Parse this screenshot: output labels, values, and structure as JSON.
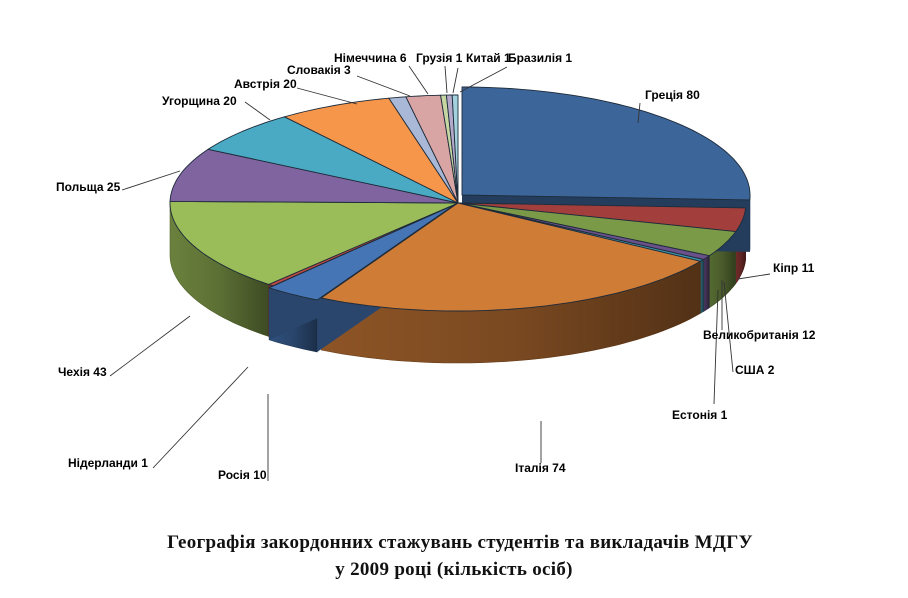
{
  "chart_data": {
    "type": "pie",
    "style": "3d-exploded",
    "title": "Географія закордонних стажувань студентів та викладачів МДГУ",
    "subtitle": "у 2009 році (кількість осіб)",
    "legend": "none",
    "slices": [
      {
        "label": "Греція",
        "value": 80,
        "display": "Греція 80",
        "color": "#3c6599"
      },
      {
        "label": "Кіпр",
        "value": 11,
        "display": "Кіпр 11",
        "color": "#a23f3c"
      },
      {
        "label": "Великобританія",
        "value": 12,
        "display": "Великобританія 12",
        "color": "#7b9a48"
      },
      {
        "label": "США",
        "value": 2,
        "display": "США 2",
        "color": "#6a5189"
      },
      {
        "label": "Естонія",
        "value": 1,
        "display": "Естонія 1",
        "color": "#3b96ae"
      },
      {
        "label": "Італія",
        "value": 74,
        "display": "Італія 74",
        "color": "#cf7c37"
      },
      {
        "label": "Росія",
        "value": 10,
        "display": "Росія 10",
        "color": "#4675b6"
      },
      {
        "label": "Нідерланди",
        "value": 1,
        "display": "Нідерланди 1",
        "color": "#bf4845"
      },
      {
        "label": "Чехія",
        "value": 43,
        "display": "Чехія 43",
        "color": "#9bbd59"
      },
      {
        "label": "Польща",
        "value": 25,
        "display": "Польща 25",
        "color": "#7f64a0"
      },
      {
        "label": "Угорщина",
        "value": 20,
        "display": "Угорщина 20",
        "color": "#4aaac4"
      },
      {
        "label": "Австрія",
        "value": 20,
        "display": "Австрія 20",
        "color": "#f5964a"
      },
      {
        "label": "Словакія",
        "value": 3,
        "display": "Словакія 3",
        "color": "#a9b8d6"
      },
      {
        "label": "Німеччина",
        "value": 6,
        "display": "Німеччина 6",
        "color": "#d8a5a4"
      },
      {
        "label": "Грузія",
        "value": 1,
        "display": "Грузія 1",
        "color": "#c5d6a2"
      },
      {
        "label": "Китай",
        "value": 1,
        "display": "Китай 1",
        "color": "#b4a9c9"
      },
      {
        "label": "Бразилія",
        "value": 1,
        "display": "Бразилія 1",
        "color": "#a3d2de"
      }
    ]
  }
}
